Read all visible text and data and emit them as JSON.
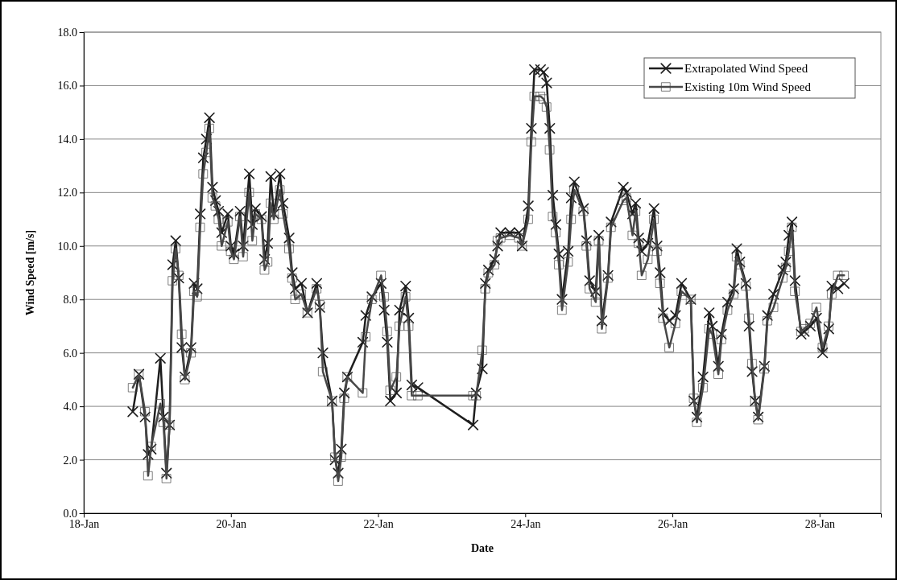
{
  "chart_data": {
    "type": "line",
    "xlabel": "Date",
    "ylabel": "Wind Speed [m/s]",
    "x": [
      "--01-18T16:00",
      "--01-18T18:00",
      "--01-18T20:00",
      "--01-18T21:00",
      "--01-18T22:00",
      "--01-19T01:00",
      "--01-19T02:00",
      "--01-19T03:00",
      "--01-19T04:00",
      "--01-19T05:00",
      "--01-19T06:00",
      "--01-19T07:00",
      "--01-19T08:00",
      "--01-19T09:00",
      "--01-19T11:00",
      "--01-19T12:00",
      "--01-19T13:00",
      "--01-19T14:00",
      "--01-19T15:00",
      "--01-19T16:00",
      "--01-19T17:00",
      "--01-19T18:00",
      "--01-19T19:00",
      "--01-19T20:00",
      "--01-19T21:00",
      "--01-19T23:00",
      "--01-20T00:00",
      "--01-20T01:00",
      "--01-20T03:00",
      "--01-20T04:00",
      "--01-20T06:00",
      "--01-20T07:00",
      "--01-20T08:00",
      "--01-20T10:00",
      "--01-20T11:00",
      "--01-20T12:00",
      "--01-20T13:00",
      "--01-20T14:00",
      "--01-20T16:00",
      "--01-20T17:00",
      "--01-20T19:00",
      "--01-20T20:00",
      "--01-20T21:00",
      "--01-20T23:00",
      "--01-21T01:00",
      "--01-21T04:00",
      "--01-21T05:00",
      "--01-21T06:00",
      "--01-21T09:00",
      "--01-21T10:00",
      "--01-21T11:00",
      "--01-21T12:00",
      "--01-21T13:00",
      "--01-21T14:00",
      "--01-21T19:00",
      "--01-21T20:00",
      "--01-21T22:00",
      "--01-22T01:00",
      "--01-22T02:00",
      "--01-22T03:00",
      "--01-22T04:00",
      "--01-22T06:00",
      "--01-22T07:00",
      "--01-22T09:00",
      "--01-22T10:00",
      "--01-22T11:00",
      "--01-22T13:00",
      "--01-23T07:00",
      "--01-23T08:00",
      "--01-23T10:00",
      "--01-23T11:00",
      "--01-23T12:00",
      "--01-23T14:00",
      "--01-23T15:00",
      "--01-23T16:00",
      "--01-23T19:00",
      "--01-23T22:00",
      "--01-23T23:00",
      "--01-24T01:00",
      "--01-24T02:00",
      "--01-24T03:00",
      "--01-24T05:00",
      "--01-24T06:00",
      "--01-24T07:00",
      "--01-24T08:00",
      "--01-24T09:00",
      "--01-24T10:00",
      "--01-24T11:00",
      "--01-24T12:00",
      "--01-24T14:00",
      "--01-24T15:00",
      "--01-24T16:00",
      "--01-24T19:00",
      "--01-24T20:00",
      "--01-24T21:00",
      "--01-24T23:00",
      "--01-25T00:00",
      "--01-25T01:00",
      "--01-25T03:00",
      "--01-25T04:00",
      "--01-25T08:00",
      "--01-25T09:00",
      "--01-25T11:00",
      "--01-25T12:00",
      "--01-25T13:00",
      "--01-25T14:00",
      "--01-25T16:00",
      "--01-25T18:00",
      "--01-25T19:00",
      "--01-25T20:00",
      "--01-25T21:00",
      "--01-25T23:00",
      "--01-26T01:00",
      "--01-26T03:00",
      "--01-26T06:00",
      "--01-26T07:00",
      "--01-26T08:00",
      "--01-26T10:00",
      "--01-26T12:00",
      "--01-26T13:00",
      "--01-26T15:00",
      "--01-26T16:00",
      "--01-26T18:00",
      "--01-26T20:00",
      "--01-26T21:00",
      "--01-26T22:00",
      "--01-27T00:00",
      "--01-27T01:00",
      "--01-27T02:00",
      "--01-27T03:00",
      "--01-27T04:00",
      "--01-27T06:00",
      "--01-27T07:00",
      "--01-27T09:00",
      "--01-27T12:00",
      "--01-27T13:00",
      "--01-27T14:00",
      "--01-27T15:00",
      "--01-27T16:00",
      "--01-27T18:00",
      "--01-27T19:00",
      "--01-27T21:00",
      "--01-27T23:00",
      "--01-28T01:00",
      "--01-28T03:00",
      "--01-28T04:00",
      "--01-28T06:00",
      "--01-28T08:00"
    ],
    "series": [
      {
        "name": "Extrapolated Wind Speed",
        "color": "#1e1e1e",
        "marker": "cross",
        "values": [
          3.8,
          5.2,
          3.6,
          2.2,
          2.4,
          5.8,
          3.6,
          1.5,
          3.3,
          9.3,
          10.2,
          8.8,
          6.2,
          5.1,
          6.2,
          8.6,
          8.4,
          11.2,
          13.3,
          14.0,
          14.8,
          12.2,
          11.7,
          11.3,
          10.5,
          11.2,
          10.0,
          9.7,
          11.3,
          10.0,
          12.7,
          10.8,
          11.4,
          11.1,
          9.5,
          10.1,
          12.6,
          11.2,
          12.7,
          11.6,
          10.3,
          9.0,
          8.4,
          8.6,
          7.5,
          8.6,
          7.7,
          6.0,
          4.2,
          2.0,
          1.5,
          2.4,
          4.5,
          5.1,
          6.4,
          7.4,
          8.1,
          8.6,
          7.6,
          6.4,
          4.2,
          4.5,
          7.6,
          8.5,
          7.3,
          4.8,
          4.7,
          3.3,
          4.5,
          5.4,
          8.6,
          9.1,
          9.5,
          10.0,
          10.5,
          10.5,
          10.5,
          10.0,
          11.5,
          14.4,
          16.6,
          16.6,
          16.5,
          16.1,
          14.4,
          11.9,
          10.8,
          9.7,
          8.0,
          9.8,
          11.8,
          12.4,
          11.4,
          10.2,
          8.7,
          8.3,
          10.4,
          7.2,
          8.9,
          10.9,
          12.2,
          12.0,
          11.2,
          11.6,
          10.3,
          9.8,
          10.1,
          11.4,
          10.0,
          9.0,
          7.5,
          7.2,
          7.4,
          8.6,
          8.0,
          4.2,
          3.6,
          5.1,
          7.5,
          7.0,
          5.5,
          6.7,
          7.9,
          8.4,
          9.9,
          9.4,
          8.6,
          7.0,
          5.3,
          4.2,
          3.6,
          5.5,
          7.4,
          8.2,
          9.1,
          9.4,
          10.4,
          10.9,
          8.7,
          6.7,
          6.8,
          7.0,
          7.3,
          6.0,
          6.9,
          8.5,
          8.4,
          8.6
        ]
      },
      {
        "name": "Existing 10m Wind Speed",
        "color": "#484848",
        "marker": "square",
        "values": [
          4.7,
          5.2,
          3.8,
          1.4,
          2.5,
          4.1,
          3.4,
          1.3,
          3.3,
          8.7,
          9.9,
          8.9,
          6.7,
          5.0,
          6.0,
          8.3,
          8.1,
          10.7,
          12.7,
          13.5,
          14.4,
          11.8,
          11.5,
          11.0,
          10.0,
          10.9,
          9.8,
          9.5,
          11.1,
          9.6,
          12.0,
          10.2,
          11.2,
          11.0,
          9.1,
          9.4,
          11.6,
          11.0,
          12.1,
          11.2,
          9.9,
          8.8,
          8.0,
          8.2,
          7.5,
          8.4,
          7.8,
          5.3,
          4.2,
          2.1,
          1.2,
          2.1,
          4.3,
          5.1,
          4.5,
          6.6,
          8.0,
          8.9,
          8.1,
          6.8,
          4.6,
          5.1,
          7.0,
          8.1,
          7.0,
          4.4,
          4.4,
          4.4,
          4.4,
          6.1,
          8.4,
          9.0,
          9.3,
          10.2,
          10.3,
          10.4,
          10.3,
          10.0,
          11.0,
          13.9,
          15.6,
          15.6,
          15.5,
          15.2,
          13.6,
          11.1,
          10.5,
          9.3,
          7.6,
          9.4,
          11.0,
          12.1,
          11.3,
          10.0,
          8.4,
          7.9,
          10.2,
          6.9,
          8.8,
          10.7,
          11.7,
          11.8,
          10.4,
          11.3,
          10.1,
          8.9,
          9.5,
          11.0,
          9.8,
          8.6,
          7.3,
          6.2,
          7.1,
          8.3,
          8.0,
          4.3,
          3.4,
          4.7,
          6.9,
          6.7,
          5.2,
          6.5,
          7.6,
          8.2,
          9.6,
          9.3,
          8.5,
          7.3,
          5.6,
          4.2,
          3.5,
          5.4,
          7.2,
          7.7,
          8.8,
          9.2,
          9.8,
          10.7,
          8.3,
          6.8,
          6.9,
          7.1,
          7.7,
          6.2,
          7.0,
          8.2,
          8.9,
          8.9
        ]
      }
    ],
    "xlim": [
      "--01-18T00:00",
      "--01-28T20:00"
    ],
    "xticks": [
      {
        "value": "--01-18T00:00",
        "label": "18-Jan"
      },
      {
        "value": "--01-20T00:00",
        "label": "20-Jan"
      },
      {
        "value": "--01-22T00:00",
        "label": "22-Jan"
      },
      {
        "value": "--01-24T00:00",
        "label": "24-Jan"
      },
      {
        "value": "--01-26T00:00",
        "label": "26-Jan"
      },
      {
        "value": "--01-28T00:00",
        "label": "28-Jan"
      }
    ],
    "ylim": [
      0,
      18
    ],
    "yticks": [
      {
        "value": 0,
        "label": "0.0"
      },
      {
        "value": 2,
        "label": "2.0"
      },
      {
        "value": 4,
        "label": "4.0"
      },
      {
        "value": 6,
        "label": "6.0"
      },
      {
        "value": 8,
        "label": "8.0"
      },
      {
        "value": 10,
        "label": "10.0"
      },
      {
        "value": 12,
        "label": "12.0"
      },
      {
        "value": 14,
        "label": "14.0"
      },
      {
        "value": 16,
        "label": "16.0"
      },
      {
        "value": 18,
        "label": "18.0"
      }
    ],
    "grid": "y",
    "legend": "top right",
    "line_style": "solid"
  }
}
